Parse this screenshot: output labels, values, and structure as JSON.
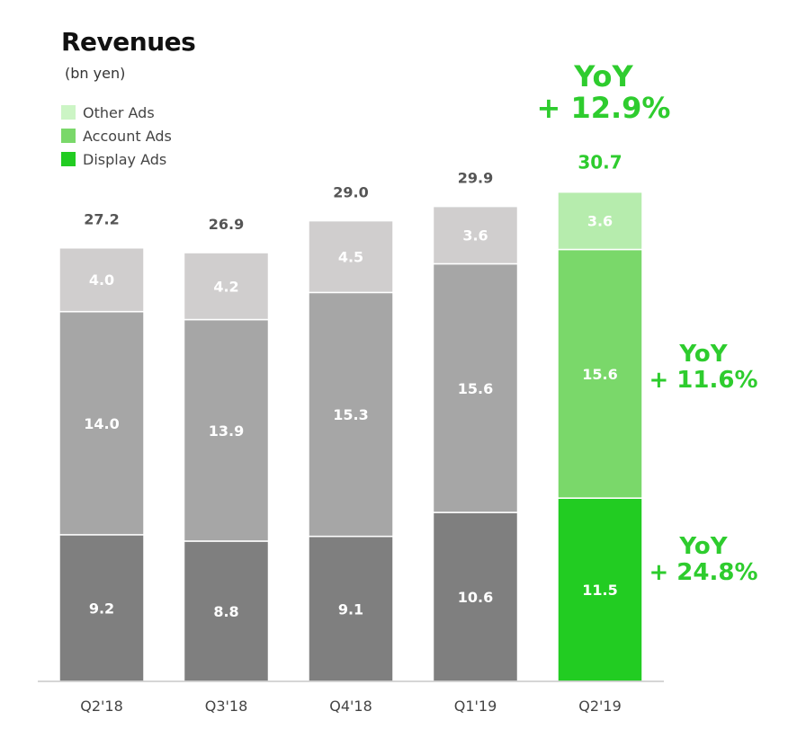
{
  "header": {
    "title": "Revenues",
    "unit": "(bn yen)"
  },
  "legend": [
    {
      "label": "Other Ads",
      "color": "#ccf5c5"
    },
    {
      "label": "Account Ads",
      "color": "#7ad86a"
    },
    {
      "label": "Display Ads",
      "color": "#22cc22"
    }
  ],
  "yoy": {
    "total_line1": "YoY",
    "total_line2": "+ 12.9%",
    "account_line1": "YoY",
    "account_line2": "+ 11.6%",
    "display_line1": "YoY",
    "display_line2": "+ 24.8%"
  },
  "chart_data": {
    "type": "bar",
    "stacked": true,
    "title": "Revenues",
    "unit": "(bn yen)",
    "categories": [
      "Q2'18",
      "Q3'18",
      "Q4'18",
      "Q1'19",
      "Q2'19"
    ],
    "series": [
      {
        "name": "Display Ads",
        "values": [
          9.2,
          8.8,
          9.1,
          10.6,
          11.5
        ]
      },
      {
        "name": "Account Ads",
        "values": [
          14.0,
          13.9,
          15.3,
          15.6,
          15.6
        ]
      },
      {
        "name": "Other Ads",
        "values": [
          4.0,
          4.2,
          4.5,
          3.6,
          3.6
        ]
      }
    ],
    "totals": [
      27.2,
      26.9,
      29.0,
      29.9,
      30.7
    ],
    "labels": {
      "Display Ads": [
        "9.2",
        "8.8",
        "9.1",
        "10.6",
        "11.5"
      ],
      "Account Ads": [
        "14.0",
        "13.9",
        "15.3",
        "15.6",
        "15.6"
      ],
      "Other Ads": [
        "4.0",
        "4.2",
        "4.5",
        "3.6",
        "3.6"
      ],
      "totals": [
        "27.2",
        "26.9",
        "29.0",
        "29.9",
        "30.7"
      ]
    },
    "colors": {
      "gray": [
        "#7f7f7f",
        "#a6a6a6",
        "#d0cece"
      ],
      "highlight": [
        "#22cc22",
        "#7ad86a",
        "#b6ecad"
      ],
      "gray_total_label": "#555555",
      "highlight_total_label": "#2ecc2e"
    },
    "highlight_index": 4
  }
}
